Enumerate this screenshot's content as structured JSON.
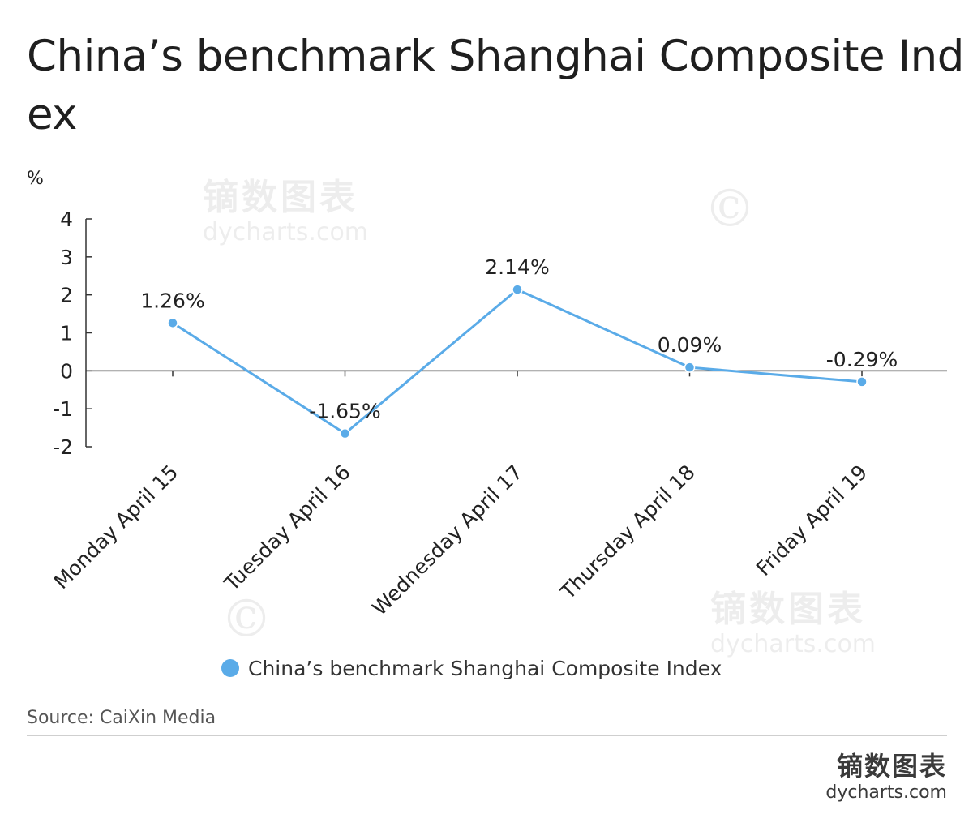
{
  "title": "China’s benchmark Shanghai Composite Index",
  "source": "Source: CaiXin Media",
  "brand": {
    "cn": "镝数图表",
    "en": "dycharts.com"
  },
  "watermark": {
    "cn": "镝数图表",
    "en": "dycharts.com",
    "copyright": "©"
  },
  "colors": {
    "series": "#5aabe8",
    "axis": "#333333",
    "text": "#222222"
  },
  "chart_data": {
    "type": "line",
    "ylabel": "%",
    "ylim": [
      -2,
      4
    ],
    "yticks": [
      4,
      3,
      2,
      1,
      0,
      -1,
      -2
    ],
    "categories": [
      "Monday April 15",
      "Tuesday April 16",
      "Wednesday April 17",
      "Thursday April 18",
      "Friday April 19"
    ],
    "series": [
      {
        "name": "China’s benchmark Shanghai Composite Index",
        "values": [
          1.26,
          -1.65,
          2.14,
          0.09,
          -0.29
        ],
        "labels": [
          "1.26%",
          "-1.65%",
          "2.14%",
          "0.09%",
          "-0.29%"
        ]
      }
    ],
    "legend": "bottom-center",
    "grid": false
  }
}
